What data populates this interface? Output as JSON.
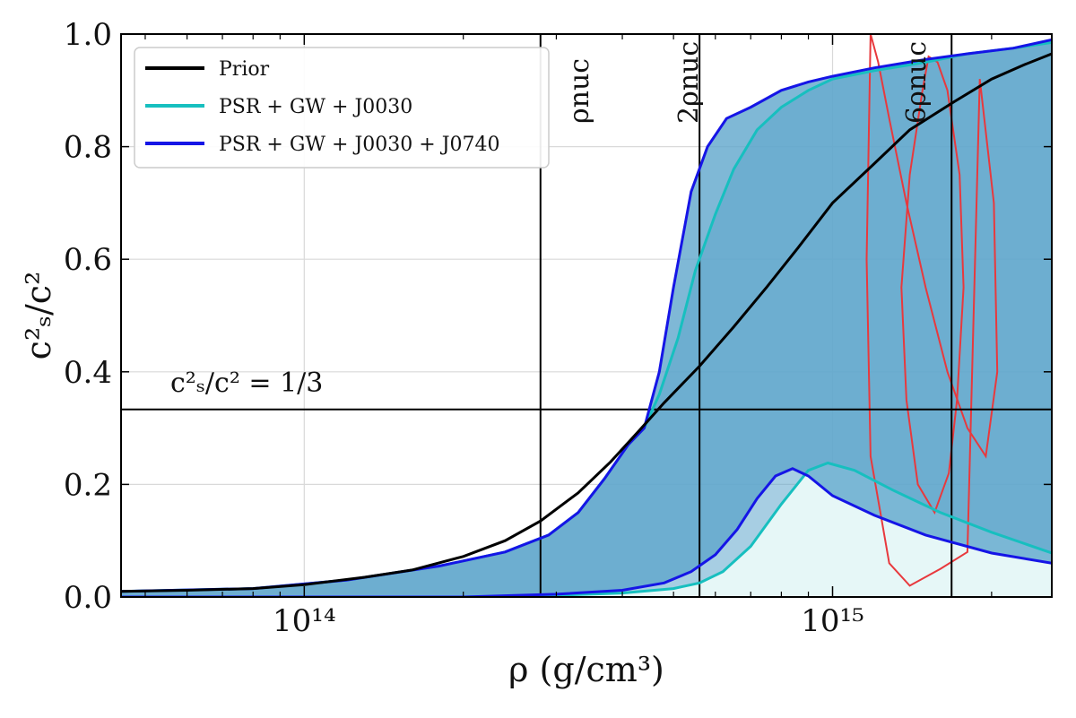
{
  "chart_data": {
    "type": "line",
    "x_scale": "log",
    "x_unit": "g/cm³",
    "xlim": [
      45000000000000,
      2600000000000000
    ],
    "ylim": [
      0,
      1.0
    ],
    "grid": true,
    "legend_position": "top-left",
    "xlabel": "ρ (g/cm³)",
    "ylabel": "c²ₛ/c²",
    "x_ticks": [
      {
        "value": 100000000000000,
        "label": "10¹⁴"
      },
      {
        "value": 1000000000000000,
        "label": "10¹⁵"
      }
    ],
    "y_ticks": [
      {
        "value": 0.0,
        "label": "0.0"
      },
      {
        "value": 0.2,
        "label": "0.2"
      },
      {
        "value": 0.4,
        "label": "0.4"
      },
      {
        "value": 0.6,
        "label": "0.6"
      },
      {
        "value": 0.8,
        "label": "0.8"
      },
      {
        "value": 1.0,
        "label": "1.0"
      }
    ],
    "colors": {
      "prior": "#000000",
      "psr_gw_j0030": "#17bfbf",
      "psr_gw_j0030_j0740": "#1515e6",
      "band_fill": "#5fa6cc",
      "band_fill_light": "#e6f7f7",
      "contour": "#e8393d"
    },
    "series": [
      {
        "name": "Prior",
        "key": "prior",
        "x": [
          45000000000000,
          60000000000000,
          80000000000000,
          100000000000000,
          130000000000000,
          160000000000000,
          200000000000000,
          240000000000000,
          280000000000000,
          330000000000000,
          380000000000000,
          430000000000000,
          480000000000000,
          560000000000000,
          650000000000000,
          750000000000000,
          860000000000000,
          1000000000000000,
          1200000000000000,
          1400000000000000,
          1700000000000000,
          2000000000000000,
          2300000000000000,
          2600000000000000
        ],
        "y": [
          0.01,
          0.012,
          0.015,
          0.022,
          0.035,
          0.048,
          0.072,
          0.1,
          0.135,
          0.185,
          0.24,
          0.295,
          0.345,
          0.41,
          0.48,
          0.55,
          0.62,
          0.7,
          0.77,
          0.83,
          0.88,
          0.92,
          0.945,
          0.965
        ]
      },
      {
        "name": "PSR + GW + J0030",
        "key": "psr_gw_j0030",
        "upper": {
          "x": [
            45000000000000,
            80000000000000,
            120000000000000,
            180000000000000,
            240000000000000,
            290000000000000,
            330000000000000,
            370000000000000,
            410000000000000,
            440000000000000,
            470000000000000,
            510000000000000,
            550000000000000,
            600000000000000,
            650000000000000,
            720000000000000,
            800000000000000,
            900000000000000,
            1000000000000000,
            1200000000000000,
            1500000000000000,
            1800000000000000,
            2200000000000000,
            2600000000000000
          ],
          "y": [
            0.01,
            0.015,
            0.03,
            0.055,
            0.08,
            0.11,
            0.15,
            0.21,
            0.27,
            0.3,
            0.36,
            0.46,
            0.58,
            0.68,
            0.76,
            0.83,
            0.87,
            0.9,
            0.92,
            0.935,
            0.95,
            0.965,
            0.975,
            0.985
          ]
        },
        "lower": {
          "x": [
            45000000000000,
            200000000000000,
            300000000000000,
            400000000000000,
            500000000000000,
            560000000000000,
            620000000000000,
            700000000000000,
            800000000000000,
            900000000000000,
            980000000000000,
            1100000000000000,
            1300000000000000,
            1600000000000000,
            2000000000000000,
            2600000000000000
          ],
          "y": [
            0.0,
            0.0,
            0.003,
            0.007,
            0.015,
            0.025,
            0.045,
            0.09,
            0.165,
            0.225,
            0.238,
            0.225,
            0.19,
            0.15,
            0.115,
            0.078
          ]
        }
      },
      {
        "name": "PSR + GW + J0030 + J0740",
        "key": "psr_gw_j0030_j0740",
        "upper": {
          "x": [
            45000000000000,
            80000000000000,
            120000000000000,
            180000000000000,
            240000000000000,
            290000000000000,
            330000000000000,
            370000000000000,
            410000000000000,
            440000000000000,
            470000000000000,
            500000000000000,
            540000000000000,
            580000000000000,
            630000000000000,
            700000000000000,
            800000000000000,
            900000000000000,
            1000000000000000,
            1200000000000000,
            1500000000000000,
            1800000000000000,
            2200000000000000,
            2600000000000000
          ],
          "y": [
            0.01,
            0.015,
            0.03,
            0.055,
            0.08,
            0.11,
            0.15,
            0.21,
            0.27,
            0.3,
            0.4,
            0.55,
            0.72,
            0.8,
            0.85,
            0.87,
            0.9,
            0.915,
            0.925,
            0.94,
            0.955,
            0.965,
            0.975,
            0.99
          ]
        },
        "lower": {
          "x": [
            45000000000000,
            200000000000000,
            300000000000000,
            400000000000000,
            480000000000000,
            540000000000000,
            600000000000000,
            660000000000000,
            720000000000000,
            780000000000000,
            840000000000000,
            900000000000000,
            1000000000000000,
            1200000000000000,
            1500000000000000,
            2000000000000000,
            2600000000000000
          ],
          "y": [
            0.0,
            0.0,
            0.005,
            0.012,
            0.025,
            0.045,
            0.075,
            0.12,
            0.175,
            0.215,
            0.228,
            0.215,
            0.18,
            0.145,
            0.11,
            0.078,
            0.06
          ]
        }
      }
    ],
    "reference_lines": [
      {
        "orientation": "vertical",
        "x": 280000000000000,
        "label": "ρnuc"
      },
      {
        "orientation": "vertical",
        "x": 560000000000000,
        "label": "2ρnuc"
      },
      {
        "orientation": "vertical",
        "x": 1680000000000000,
        "label": "6ρnuc"
      },
      {
        "orientation": "horizontal",
        "y": 0.3333,
        "label": "c²ₛ/c² = 1/3"
      }
    ],
    "contours": [
      {
        "level": "outer",
        "x": [
          1180000000000000,
          1220000000000000,
          1280000000000000,
          1380000000000000,
          1500000000000000,
          1650000000000000,
          1800000000000000,
          1950000000000000,
          2050000000000000,
          2020000000000000,
          1900000000000000,
          1800000000000000,
          1600000000000000,
          1400000000000000,
          1280000000000000,
          1180000000000000,
          1160000000000000,
          1180000000000000
        ],
        "y": [
          1.0,
          0.95,
          0.85,
          0.7,
          0.55,
          0.4,
          0.3,
          0.25,
          0.4,
          0.7,
          0.92,
          0.08,
          0.05,
          0.02,
          0.06,
          0.25,
          0.6,
          1.0
        ]
      },
      {
        "level": "inner",
        "x": [
          1520000000000000,
          1580000000000000,
          1650000000000000,
          1740000000000000,
          1770000000000000,
          1720000000000000,
          1660000000000000,
          1560000000000000,
          1450000000000000,
          1380000000000000,
          1350000000000000,
          1400000000000000,
          1480000000000000,
          1520000000000000
        ],
        "y": [
          0.96,
          0.95,
          0.9,
          0.75,
          0.55,
          0.35,
          0.22,
          0.15,
          0.2,
          0.35,
          0.55,
          0.75,
          0.9,
          0.96
        ]
      }
    ]
  }
}
